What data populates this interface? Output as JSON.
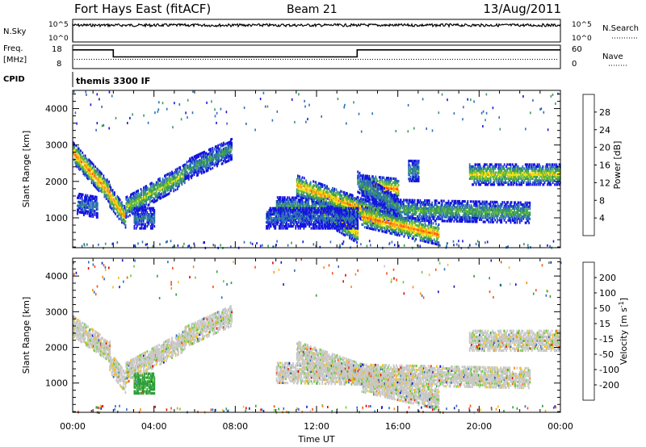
{
  "header": {
    "station": "Fort Hays East (fitACF)",
    "beam": "Beam 21",
    "date": "13/Aug/2011"
  },
  "top_panels": {
    "nsky_label": "N.Sky",
    "nsky_ticks": [
      "10^5",
      "10^0"
    ],
    "nsearch_label": "N.Search",
    "nsearch_ticks": [
      "10^5",
      "10^0"
    ],
    "freq_label": "Freq.",
    "freq_unit": "[MHz]",
    "freq_ticks": [
      "18",
      "8"
    ],
    "nave_label": "Nave",
    "nave_ticks": [
      "60",
      "0"
    ],
    "cpid_label": "CPID",
    "cpid_value": "themis 3300 IF"
  },
  "axes": {
    "xlabel": "Time UT",
    "xticks": [
      "00:00",
      "04:00",
      "08:00",
      "12:00",
      "16:00",
      "20:00",
      "00:00"
    ],
    "ylabel": "Slant Range [km]",
    "yticks": [
      "1000",
      "2000",
      "3000",
      "4000"
    ],
    "power_label": "Power [dB]",
    "power_ticks": [
      "28",
      "24",
      "20",
      "16",
      "12",
      "8",
      "4"
    ],
    "velocity_label": "Velocity [m s",
    "velocity_sup": "-1",
    "velocity_label_end": "]",
    "velocity_ticks": [
      "200",
      "100",
      "50",
      "15",
      "-15",
      "-50",
      "-100",
      "-200"
    ]
  },
  "colors": {
    "power": [
      "#1515e0",
      "#2e6fb8",
      "#3a9a5c",
      "#66bb33",
      "#f3e014",
      "#ff9a10",
      "#ff4a10",
      "#e00000"
    ],
    "velocity": [
      "#1515c0",
      "#2a6cc0",
      "#2e9e3c",
      "#66cc33",
      "#c8c8c8",
      "#f0c020",
      "#ff8a10",
      "#ff4a10",
      "#e00000"
    ]
  },
  "chart_data": [
    {
      "type": "heatmap",
      "panel": "power",
      "xlabel": "Time UT",
      "ylabel": "Slant Range [km]",
      "xlim": [
        0,
        24
      ],
      "ylim": [
        180,
        4500
      ],
      "colorbar": {
        "label": "Power [dB]",
        "ticks": [
          4,
          8,
          12,
          16,
          20,
          24,
          28
        ]
      },
      "bands": [
        {
          "t0": 0.0,
          "t1": 1.8,
          "r0": 2800,
          "r1": 1700,
          "p": 26
        },
        {
          "t0": 1.8,
          "t1": 2.6,
          "r0": 1600,
          "r1": 1000,
          "p": 24
        },
        {
          "t0": 2.6,
          "t1": 5.5,
          "r0": 1300,
          "r1": 2200,
          "p": 18
        },
        {
          "t0": 5.5,
          "t1": 7.8,
          "r0": 2300,
          "r1": 2900,
          "p": 12
        },
        {
          "t0": 0.2,
          "t1": 1.2,
          "r0": 1400,
          "r1": 1300,
          "p": 9
        },
        {
          "t0": 3.0,
          "t1": 4.0,
          "r0": 1000,
          "r1": 1000,
          "p": 9
        },
        {
          "t0": 10.0,
          "t1": 22.5,
          "r0": 1300,
          "r1": 1150,
          "p": 14
        },
        {
          "t0": 11.0,
          "t1": 15.0,
          "r0": 1900,
          "r1": 1100,
          "p": 24
        },
        {
          "t0": 14.2,
          "t1": 18.0,
          "r0": 1050,
          "r1": 550,
          "p": 26
        },
        {
          "t0": 12.2,
          "t1": 14.0,
          "r0": 1200,
          "r1": 600,
          "p": 22
        },
        {
          "t0": 14.2,
          "t1": 16.0,
          "r0": 1900,
          "r1": 1800,
          "p": 26
        },
        {
          "t0": 14.0,
          "t1": 16.0,
          "r0": 2000,
          "r1": 1300,
          "p": 12
        },
        {
          "t0": 19.5,
          "t1": 24.0,
          "r0": 2200,
          "r1": 2200,
          "p": 20
        },
        {
          "t0": 16.5,
          "t1": 17.0,
          "r0": 2300,
          "r1": 2300,
          "p": 12
        },
        {
          "t0": 9.5,
          "t1": 14.0,
          "r0": 1000,
          "r1": 1000,
          "p": 8
        }
      ]
    },
    {
      "type": "heatmap",
      "panel": "velocity",
      "xlabel": "Time UT",
      "ylabel": "Slant Range [km]",
      "xlim": [
        0,
        24
      ],
      "ylim": [
        180,
        4500
      ],
      "colorbar": {
        "label": "Velocity [m s-1]",
        "ticks": [
          200,
          100,
          50,
          15,
          -15,
          -50,
          -100,
          -200
        ]
      },
      "bands": [
        {
          "t0": 0.0,
          "t1": 1.8,
          "r0": 2600,
          "r1": 1900,
          "v": 0
        },
        {
          "t0": 1.8,
          "t1": 2.6,
          "r0": 1600,
          "r1": 1000,
          "v": 0
        },
        {
          "t0": 2.6,
          "t1": 5.5,
          "r0": 1300,
          "r1": 2200,
          "v": 0
        },
        {
          "t0": 5.5,
          "t1": 7.8,
          "r0": 2300,
          "r1": 2900,
          "v": 0
        },
        {
          "t0": 10.0,
          "t1": 22.5,
          "r0": 1300,
          "r1": 1150,
          "v": 0
        },
        {
          "t0": 11.0,
          "t1": 15.0,
          "r0": 1900,
          "r1": 1100,
          "v": 0
        },
        {
          "t0": 14.2,
          "t1": 18.0,
          "r0": 1050,
          "r1": 550,
          "v": 0
        },
        {
          "t0": 19.5,
          "t1": 24.0,
          "r0": 2200,
          "r1": 2200,
          "v": 0
        },
        {
          "t0": 3.0,
          "t1": 4.0,
          "r0": 1000,
          "r1": 1000,
          "v": 40
        }
      ]
    },
    {
      "type": "line",
      "panel": "frequency",
      "ylabel": "Freq. [MHz]",
      "x": [
        0,
        2,
        2,
        14,
        14,
        24
      ],
      "y": [
        16,
        16,
        13,
        13,
        16,
        16
      ]
    }
  ]
}
